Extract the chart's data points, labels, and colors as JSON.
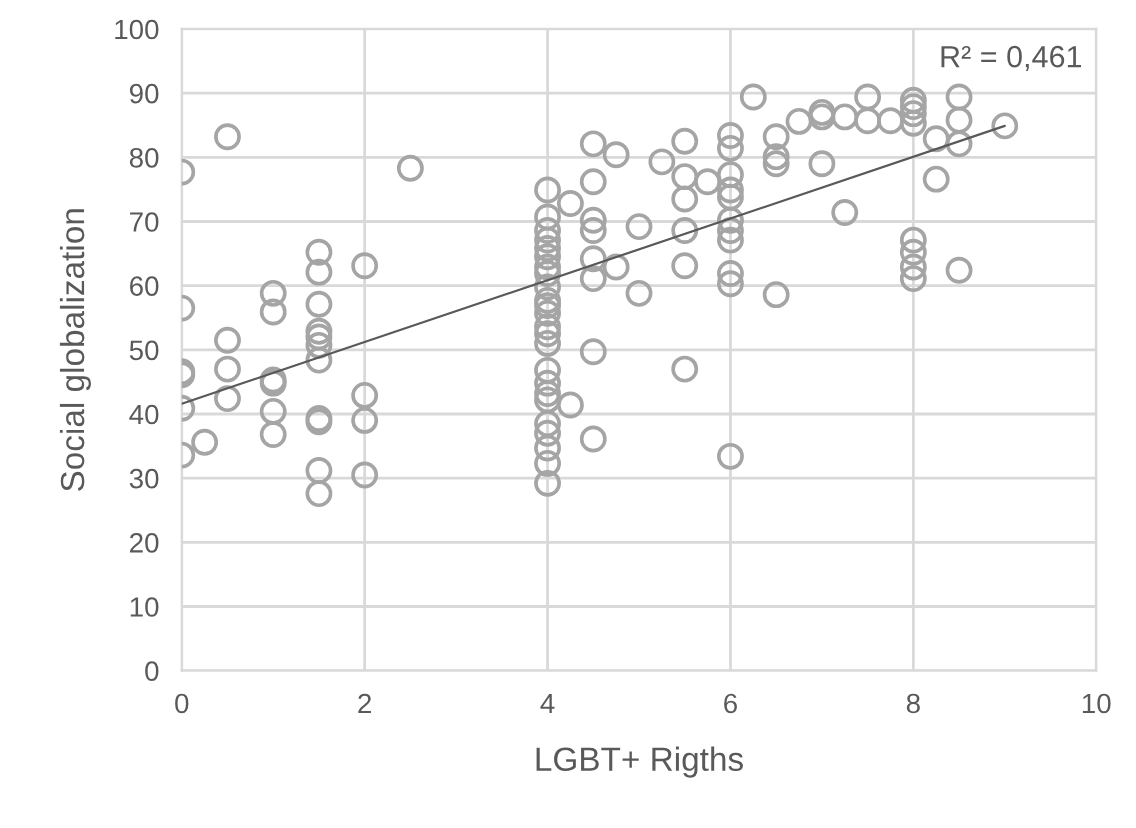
{
  "chart_data": {
    "type": "scatter",
    "xlabel": "LGBT+ Rigths",
    "ylabel": "Social globalization",
    "annotations": [
      "R² = 0,461"
    ],
    "xlim": [
      0,
      10
    ],
    "xticks": [
      0,
      2,
      4,
      6,
      8,
      10
    ],
    "ylim": [
      0,
      100
    ],
    "yticks": [
      0,
      10,
      20,
      30,
      40,
      50,
      60,
      70,
      80,
      90,
      100
    ],
    "grid": true,
    "legend": false,
    "series": [
      {
        "color": "#a5a5a5",
        "marker": "circle",
        "x": [
          0.5,
          0,
          2.5,
          1.5,
          1.5,
          2,
          1,
          1,
          0,
          1.5,
          0.5,
          1.5,
          1.5,
          1.5,
          1.5,
          0,
          0,
          0.5,
          1,
          1,
          0.5,
          0,
          1,
          1,
          1.5,
          1.5,
          2,
          2,
          0.25,
          0,
          1.5,
          1.5,
          2,
          4,
          4,
          4,
          4,
          4,
          4,
          4,
          4,
          4,
          4,
          4,
          4,
          4,
          4,
          4,
          4,
          4,
          4,
          4,
          4,
          4,
          4,
          4,
          4,
          4.25,
          4.25,
          4.5,
          4.5,
          4.5,
          4.5,
          4.5,
          4.5,
          4.5,
          4.5,
          4.75,
          4.75,
          5,
          5,
          5.25,
          5.5,
          5.5,
          5.5,
          5.5,
          5.5,
          5.5,
          5.75,
          6,
          6,
          6,
          6,
          6,
          6,
          6,
          6,
          6,
          6,
          6,
          6.25,
          6.5,
          6.5,
          6.5,
          6.5,
          6.75,
          7,
          7,
          7,
          7.25,
          7.25,
          7.5,
          7.5,
          7.75,
          8,
          8,
          8,
          8,
          8,
          8,
          8,
          8,
          8.25,
          8.25,
          8.5,
          8.5,
          8.5,
          8.5,
          9
        ],
        "values": [
          83.2,
          77.7,
          78.3,
          65.2,
          62.1,
          63.1,
          58.8,
          55.9,
          56.5,
          57.1,
          51.5,
          52.9,
          52.0,
          50.7,
          48.4,
          46.6,
          46.1,
          47.0,
          45.3,
          44.8,
          42.4,
          40.9,
          40.4,
          36.8,
          39.3,
          38.8,
          42.9,
          39.0,
          35.6,
          33.6,
          31.2,
          27.6,
          30.5,
          74.9,
          70.7,
          68.6,
          67.1,
          65.8,
          64.5,
          62.9,
          61.9,
          59.8,
          57.7,
          56.9,
          55.7,
          53.6,
          52.5,
          51.0,
          46.8,
          44.8,
          43.2,
          42.2,
          38.5,
          37.0,
          34.7,
          32.3,
          29.2,
          72.8,
          41.4,
          82.1,
          76.2,
          70.2,
          68.6,
          64.2,
          61.1,
          49.7,
          36.1,
          80.4,
          62.9,
          69.2,
          58.8,
          79.3,
          82.5,
          77.0,
          73.5,
          68.6,
          63.1,
          47.0,
          76.2,
          83.4,
          81.4,
          77.3,
          74.9,
          73.8,
          70.2,
          68.6,
          67.1,
          61.9,
          60.3,
          33.4,
          89.4,
          83.2,
          80.1,
          79.0,
          58.6,
          85.6,
          87.0,
          86.3,
          79.0,
          86.3,
          71.4,
          89.4,
          85.7,
          85.7,
          88.9,
          87.9,
          86.8,
          85.3,
          67.1,
          65.2,
          62.9,
          61.1,
          82.9,
          76.6,
          89.4,
          85.8,
          82.1,
          62.4,
          84.9
        ]
      },
      {
        "type": "line",
        "color": "#595959",
        "marker": "none",
        "x": [
          0,
          9
        ],
        "values": [
          41.6,
          84.9
        ]
      }
    ]
  }
}
